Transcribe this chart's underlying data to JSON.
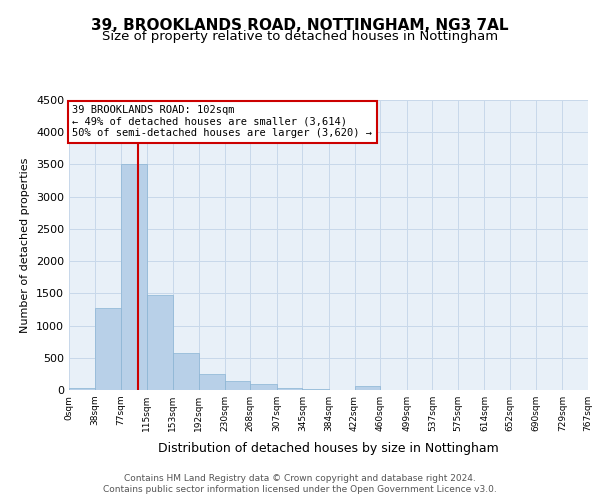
{
  "title": "39, BROOKLANDS ROAD, NOTTINGHAM, NG3 7AL",
  "subtitle": "Size of property relative to detached houses in Nottingham",
  "xlabel": "Distribution of detached houses by size in Nottingham",
  "ylabel": "Number of detached properties",
  "bar_color": "#b8d0e8",
  "bar_edge_color": "#8ab4d4",
  "grid_color": "#c8d8ea",
  "background_color": "#e8f0f8",
  "bin_edges": [
    0,
    38,
    77,
    115,
    153,
    192,
    230,
    268,
    307,
    345,
    384,
    422,
    460,
    499,
    537,
    575,
    614,
    652,
    690,
    729,
    767
  ],
  "bar_heights": [
    30,
    1280,
    3500,
    1480,
    570,
    255,
    145,
    90,
    30,
    10,
    5,
    55,
    5,
    0,
    0,
    0,
    0,
    0,
    0,
    0
  ],
  "red_line_x": 102,
  "annotation_lines": [
    "39 BROOKLANDS ROAD: 102sqm",
    "← 49% of detached houses are smaller (3,614)",
    "50% of semi-detached houses are larger (3,620) →"
  ],
  "annotation_box_color": "#cc0000",
  "ylim": [
    0,
    4500
  ],
  "yticks": [
    0,
    500,
    1000,
    1500,
    2000,
    2500,
    3000,
    3500,
    4000,
    4500
  ],
  "footer_line1": "Contains HM Land Registry data © Crown copyright and database right 2024.",
  "footer_line2": "Contains public sector information licensed under the Open Government Licence v3.0.",
  "title_fontsize": 11,
  "subtitle_fontsize": 9.5
}
